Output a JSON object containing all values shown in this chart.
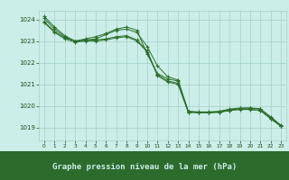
{
  "title": "Graphe pression niveau de la mer (hPa)",
  "bg_color": "#cceee8",
  "plot_bg_color": "#cceee8",
  "bottom_bar_color": "#2d6b2d",
  "grid_color": "#a0d0c8",
  "line_color": "#2d6e2d",
  "marker_color": "#2d6e2d",
  "tick_label_color": "#1a4a1a",
  "bottom_text_color": "#cceee8",
  "ylim": [
    1018.4,
    1024.4
  ],
  "xlim": [
    -0.5,
    23.5
  ],
  "yticks": [
    1019,
    1020,
    1021,
    1022,
    1023,
    1024
  ],
  "xticks": [
    0,
    1,
    2,
    3,
    4,
    5,
    6,
    7,
    8,
    9,
    10,
    11,
    12,
    13,
    14,
    15,
    16,
    17,
    18,
    19,
    20,
    21,
    22,
    23
  ],
  "series": [
    [
      1024.0,
      1023.6,
      1023.3,
      1023.1,
      1023.1,
      1023.0,
      1023.1,
      1023.3,
      1023.45,
      1023.4,
      1022.8,
      1021.8,
      1021.4,
      1021.2,
      1019.75,
      1019.72,
      1019.72,
      1019.75,
      1019.85,
      1019.9,
      1019.9,
      1019.85,
      1019.5,
      1019.15
    ],
    [
      1023.85,
      1023.45,
      1023.15,
      1023.0,
      1023.05,
      1023.05,
      1023.1,
      1023.2,
      1023.3,
      1023.15,
      1022.55,
      1021.55,
      1021.25,
      1021.15,
      1019.72,
      1019.7,
      1019.7,
      1019.72,
      1019.8,
      1019.85,
      1019.85,
      1019.8,
      1019.45,
      1019.1
    ],
    [
      1023.95,
      1023.5,
      1023.2,
      1023.05,
      1023.1,
      1023.1,
      1023.15,
      1023.25,
      1023.35,
      1023.2,
      1022.65,
      1021.6,
      1021.3,
      1021.2,
      1019.73,
      1019.7,
      1019.7,
      1019.73,
      1019.82,
      1019.87,
      1019.87,
      1019.82,
      1019.47,
      1019.12
    ],
    [
      1024.1,
      1023.65,
      1023.25,
      1023.1,
      1023.15,
      1023.1,
      1023.2,
      1023.3,
      1023.4,
      1023.25,
      1022.7,
      1021.65,
      1021.35,
      1021.25,
      1019.74,
      1019.72,
      1019.72,
      1019.74,
      1019.84,
      1019.88,
      1019.88,
      1019.84,
      1019.48,
      1019.13
    ]
  ],
  "series2": [
    [
      1024.1,
      1023.5,
      1023.2,
      1023.0,
      1023.0,
      1023.15,
      1023.3,
      1023.5,
      1023.6,
      1023.45,
      1022.8,
      1021.9,
      1021.45,
      1021.3,
      1020.3,
      1020.0,
      1019.75,
      1019.7,
      1019.85,
      1019.95,
      1019.95,
      1019.9,
      1019.5,
      1019.1
    ]
  ]
}
